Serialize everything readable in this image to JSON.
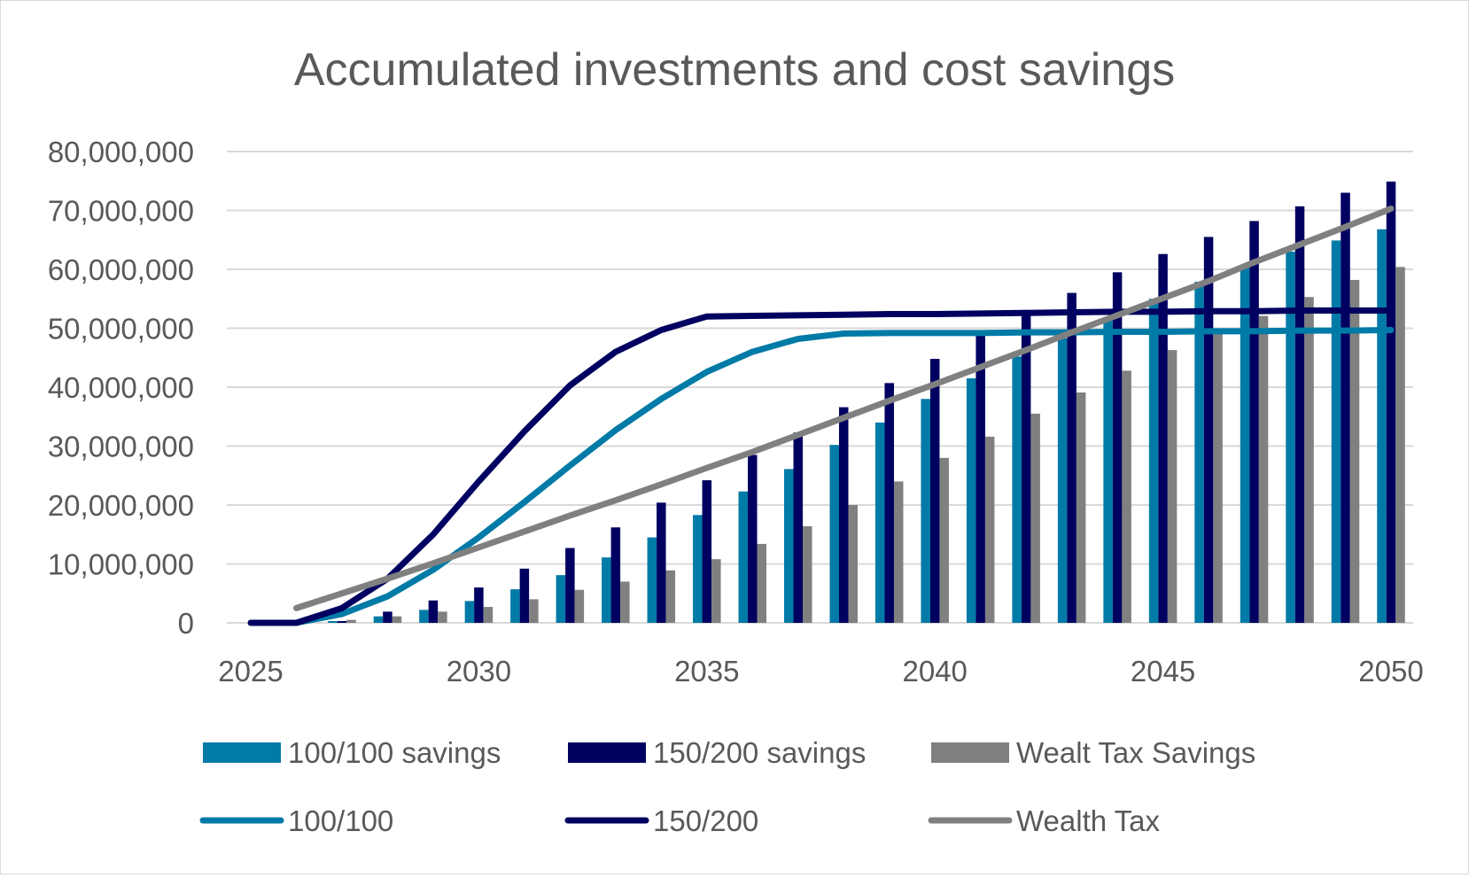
{
  "chart_data": {
    "type": "bar+line",
    "title": "Accumulated investments and cost savings",
    "xlabel": "",
    "ylabel": "",
    "xlim": [
      2025,
      2050
    ],
    "ylim": [
      0,
      80000000
    ],
    "x_ticks": [
      "2025",
      "2030",
      "2035",
      "2040",
      "2045",
      "2050"
    ],
    "y_ticks": [
      "0",
      "10,000,000",
      "20,000,000",
      "30,000,000",
      "40,000,000",
      "50,000,000",
      "60,000,000",
      "70,000,000",
      "80,000,000"
    ],
    "grid": true,
    "legend_position": "bottom",
    "bar_years": [
      2026,
      2027,
      2028,
      2029,
      2030,
      2031,
      2032,
      2033,
      2034,
      2035,
      2036,
      2037,
      2038,
      2039,
      2040,
      2041,
      2042,
      2043,
      2044,
      2045,
      2046,
      2047,
      2048,
      2049,
      2050
    ],
    "bar_series": [
      {
        "name": "100/100 savings",
        "color": "#007aa6",
        "values": [
          0,
          300000,
          1100000,
          2200000,
          3700000,
          5700000,
          8100000,
          11100000,
          14500000,
          18300000,
          22300000,
          26100000,
          30200000,
          34000000,
          38000000,
          41500000,
          45200000,
          48300000,
          51500000,
          55000000,
          57900000,
          60600000,
          63000000,
          64900000,
          66800000
        ]
      },
      {
        "name": "150/200 savings",
        "color": "#000060",
        "values": [
          0,
          300000,
          1900000,
          3800000,
          6000000,
          9200000,
          12700000,
          16200000,
          20400000,
          24200000,
          28500000,
          32300000,
          36600000,
          40700000,
          44800000,
          49100000,
          53100000,
          56000000,
          59500000,
          62600000,
          65500000,
          68200000,
          70700000,
          73000000,
          74900000
        ]
      },
      {
        "name": "Wealt Tax Savings",
        "color": "#808080",
        "values": [
          0,
          500000,
          1100000,
          1900000,
          2700000,
          4000000,
          5600000,
          7000000,
          8900000,
          10800000,
          13400000,
          16400000,
          20000000,
          24000000,
          28000000,
          31600000,
          35500000,
          39100000,
          42800000,
          46300000,
          49600000,
          52100000,
          55300000,
          58200000,
          60400000
        ]
      }
    ],
    "line_series": [
      {
        "name": "100/100",
        "color": "#007aa6",
        "x": [
          2026,
          2027,
          2028,
          2029,
          2030,
          2031,
          2032,
          2033,
          2034,
          2035,
          2036,
          2037,
          2038,
          2039,
          2040,
          2041,
          2042,
          2043,
          2044,
          2045,
          2046,
          2047,
          2048,
          2049,
          2050
        ],
        "values": [
          0,
          1500000,
          4500000,
          9000000,
          14500000,
          20500000,
          26700000,
          32700000,
          38000000,
          42600000,
          46000000,
          48200000,
          49100000,
          49200000,
          49200000,
          49200000,
          49300000,
          49300000,
          49400000,
          49400000,
          49500000,
          49500000,
          49600000,
          49600000,
          49700000
        ]
      },
      {
        "name": "150/200",
        "color": "#000060",
        "x": [
          2025,
          2026,
          2027,
          2028,
          2029,
          2030,
          2031,
          2032,
          2033,
          2034,
          2035,
          2036,
          2037,
          2038,
          2039,
          2040,
          2041,
          2042,
          2043,
          2044,
          2045,
          2046,
          2047,
          2048,
          2049,
          2050
        ],
        "values": [
          0,
          0,
          2500000,
          7500000,
          15000000,
          24000000,
          32500000,
          40300000,
          46000000,
          49700000,
          52000000,
          52100000,
          52200000,
          52300000,
          52400000,
          52400000,
          52500000,
          52600000,
          52700000,
          52800000,
          52800000,
          52900000,
          52900000,
          53000000,
          53000000,
          53000000
        ]
      },
      {
        "name": "Wealth Tax",
        "color": "#808080",
        "x": [
          2026,
          2027,
          2028,
          2029,
          2030,
          2031,
          2032,
          2033,
          2034,
          2035,
          2036,
          2037,
          2038,
          2039,
          2040,
          2041,
          2042,
          2043,
          2044,
          2045,
          2046,
          2047,
          2048,
          2049,
          2050
        ],
        "values": [
          2500000,
          5000000,
          7500000,
          10100000,
          12800000,
          15500000,
          18200000,
          20800000,
          23500000,
          26300000,
          29000000,
          31900000,
          34800000,
          37700000,
          40500000,
          43400000,
          46300000,
          49300000,
          52200000,
          55100000,
          58000000,
          61200000,
          64200000,
          67200000,
          70300000
        ]
      }
    ]
  }
}
